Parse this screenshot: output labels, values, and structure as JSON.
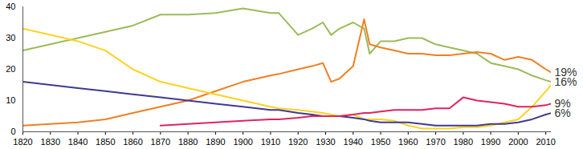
{
  "chart_data": {
    "type": "line",
    "x": [
      1820,
      1830,
      1840,
      1850,
      1860,
      1870,
      1880,
      1890,
      1900,
      1910,
      1913,
      1920,
      1925,
      1929,
      1932,
      1935,
      1940,
      1944,
      1946,
      1950,
      1955,
      1960,
      1965,
      1970,
      1975,
      1980,
      1985,
      1990,
      1995,
      2000,
      2005,
      2010,
      2012
    ],
    "series": [
      {
        "color": "#9bbb59",
        "values": [
          26,
          28,
          30,
          32,
          34,
          37.5,
          37.5,
          38,
          39.5,
          38,
          38,
          31,
          33,
          35,
          31,
          33,
          35,
          33,
          25,
          29,
          29,
          30,
          30,
          28,
          27,
          26,
          25,
          22,
          21,
          20,
          18,
          16.5,
          16
        ]
      },
      {
        "color": "#f07f21",
        "values": [
          2,
          2.5,
          3,
          4,
          6,
          8,
          10,
          13,
          16,
          18,
          18.5,
          20,
          21,
          22,
          16,
          17,
          21,
          36,
          28,
          27,
          26,
          25,
          25,
          24.5,
          24.5,
          25,
          25.5,
          25,
          23,
          24,
          23,
          20,
          19
        ]
      },
      {
        "color": "#ffd21f",
        "values": [
          33,
          31,
          29,
          26,
          20,
          16,
          14,
          12,
          10,
          8,
          7.5,
          7,
          6.5,
          6,
          5.5,
          5,
          5.5,
          4,
          4,
          4,
          3.5,
          2,
          1,
          1,
          1,
          1.5,
          1.5,
          2,
          3,
          4,
          8,
          13,
          15
        ]
      },
      {
        "color": "#3f3a8f",
        "values": [
          16,
          15,
          14,
          13,
          12,
          11,
          10,
          9,
          8,
          7,
          7,
          6,
          5.5,
          5,
          5,
          5,
          4.5,
          4,
          3.5,
          3,
          3,
          3,
          2.5,
          2,
          2,
          2,
          2,
          2.5,
          2.5,
          3,
          4,
          5.5,
          6
        ]
      },
      {
        "color": "#e0245e",
        "values": [
          null,
          null,
          null,
          null,
          null,
          2,
          2.5,
          3,
          3.5,
          4,
          4,
          4.5,
          5,
          5,
          5,
          5,
          5.5,
          6,
          6,
          6.5,
          7,
          7,
          7,
          7.5,
          7.5,
          11,
          10,
          9.5,
          9,
          8,
          8,
          8.5,
          9
        ]
      }
    ],
    "xlim": [
      1820,
      2012
    ],
    "xticks": [
      1820,
      1830,
      1840,
      1850,
      1860,
      1870,
      1880,
      1890,
      1900,
      1910,
      1920,
      1930,
      1940,
      1950,
      1960,
      1970,
      1980,
      1990,
      2000,
      2010
    ],
    "ylim": [
      0,
      40
    ],
    "yticks": [
      0,
      10,
      20,
      30,
      40
    ],
    "grid": false,
    "annotations": [
      {
        "text": "19%",
        "x": 2012,
        "y": 19
      },
      {
        "text": "16%",
        "x": 2012,
        "y": 16
      },
      {
        "text": "9%",
        "x": 2012,
        "y": 9
      },
      {
        "text": "6%",
        "x": 2012,
        "y": 6
      }
    ]
  }
}
